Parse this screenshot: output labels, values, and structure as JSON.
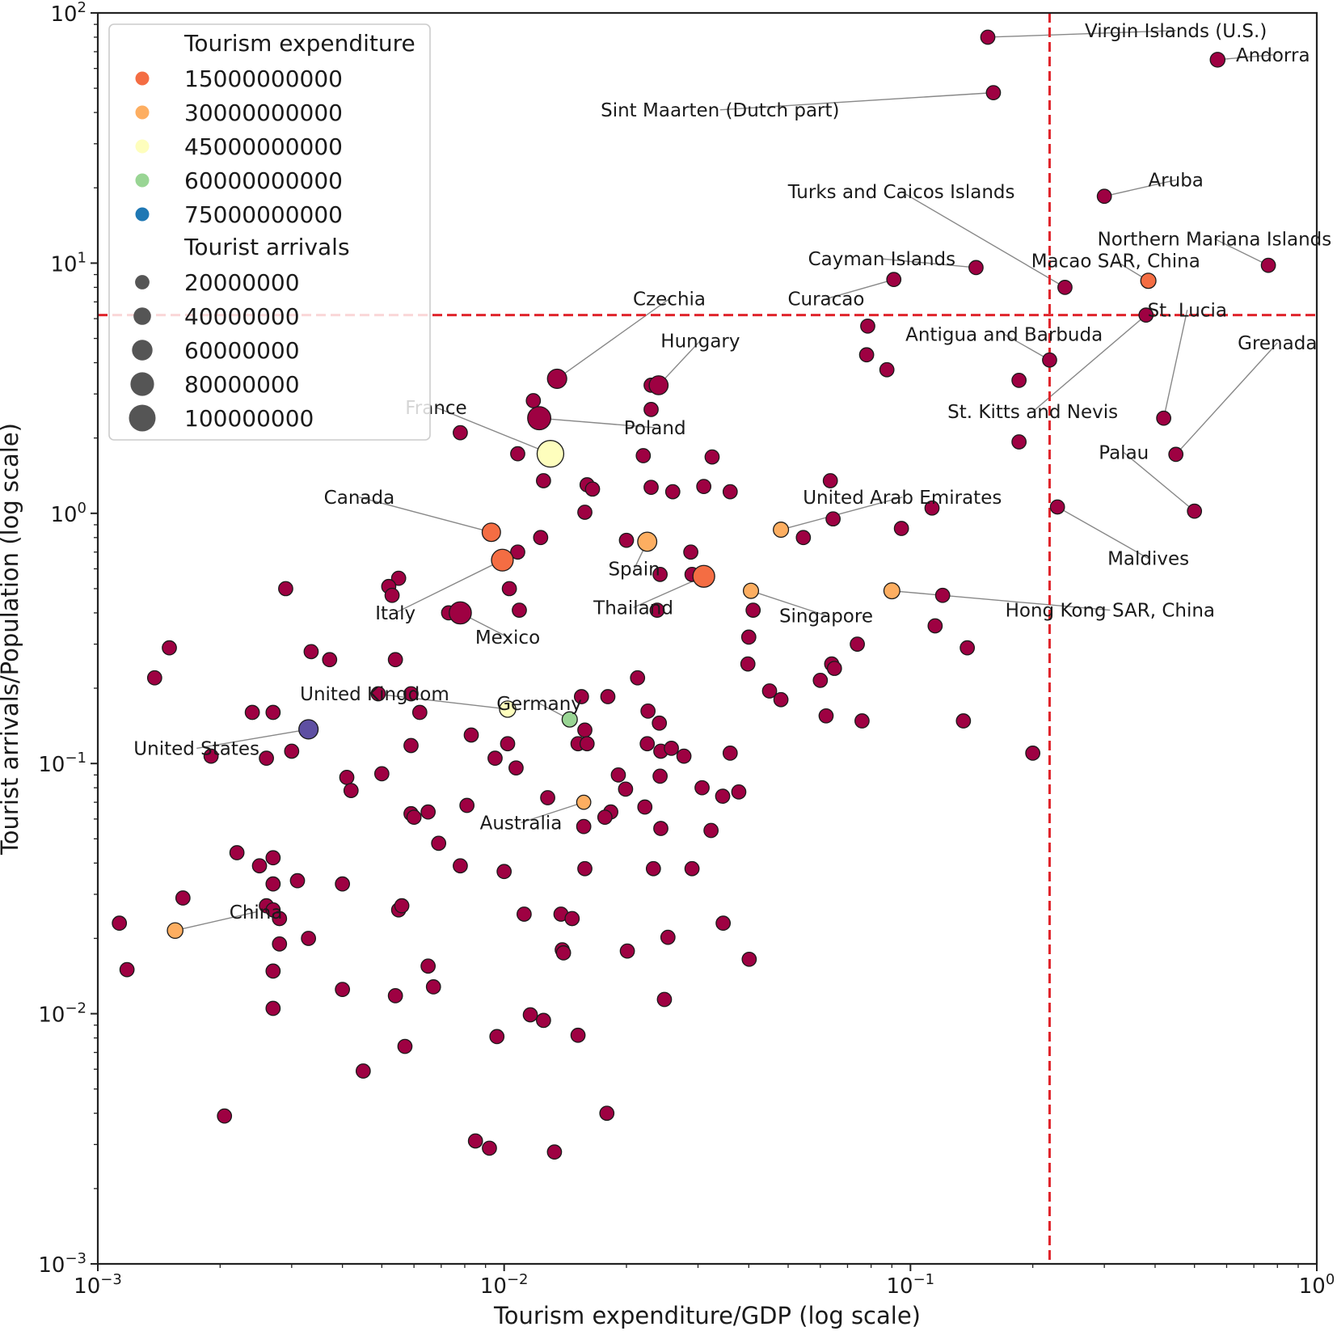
{
  "chart_data": {
    "type": "scatter",
    "title": "",
    "xlabel": "Tourism expenditure/GDP (log scale)",
    "ylabel": "Tourist arrivals/Population (log scale)",
    "xscale": "log",
    "yscale": "log",
    "xlim": [
      0.001,
      1
    ],
    "ylim": [
      0.001,
      100
    ],
    "x_ticks": [
      {
        "value": 0.001,
        "base": "10",
        "exp": "−3"
      },
      {
        "value": 0.01,
        "base": "10",
        "exp": "−2"
      },
      {
        "value": 0.1,
        "base": "10",
        "exp": "−1"
      },
      {
        "value": 1,
        "base": "10",
        "exp": "0"
      }
    ],
    "y_ticks": [
      {
        "value": 0.001,
        "base": "10",
        "exp": "−3"
      },
      {
        "value": 0.01,
        "base": "10",
        "exp": "−2"
      },
      {
        "value": 0.1,
        "base": "10",
        "exp": "−1"
      },
      {
        "value": 1,
        "base": "10",
        "exp": "0"
      },
      {
        "value": 10,
        "base": "10",
        "exp": "1"
      },
      {
        "value": 100,
        "base": "10",
        "exp": "2"
      }
    ],
    "thresholds": {
      "x": 0.22,
      "y": 6.2,
      "style": "red dashed"
    },
    "colors": {
      "c0": "#9e0142",
      "c15": "#f46d43",
      "c30": "#fdae61",
      "c45": "#fefebd",
      "c60": "#99d594",
      "c75": "#1f78b4",
      "cUS": "#5e4fa2",
      "threshold": "#e0242b"
    },
    "legend": {
      "position": "top-left",
      "color_title": "Tourism expenditure",
      "color_items": [
        {
          "label": "15000000000",
          "color": "#f46d43"
        },
        {
          "label": "30000000000",
          "color": "#fdae61"
        },
        {
          "label": "45000000000",
          "color": "#fefebd"
        },
        {
          "label": "60000000000",
          "color": "#99d594"
        },
        {
          "label": "75000000000",
          "color": "#1f78b4"
        }
      ],
      "size_title": "Tourist arrivals",
      "size_items": [
        {
          "label": "20000000",
          "arrivals": 20000000
        },
        {
          "label": "40000000",
          "arrivals": 40000000
        },
        {
          "label": "60000000",
          "arrivals": 60000000
        },
        {
          "label": "80000000",
          "arrivals": 80000000
        },
        {
          "label": "100000000",
          "arrivals": 100000000
        }
      ]
    },
    "labeled_points": [
      {
        "name": "Virgin Islands (U.S.)",
        "x": 0.155,
        "y": 80,
        "arrivals": 1000000,
        "color": "c0",
        "label_x": 0.45,
        "label_y": 85
      },
      {
        "name": "Andorra",
        "x": 0.57,
        "y": 65,
        "arrivals": 2000000,
        "color": "c0",
        "label_x": 0.78,
        "label_y": 68
      },
      {
        "name": "Sint Maarten (Dutch part)",
        "x": 0.16,
        "y": 48,
        "arrivals": 1000000,
        "color": "c0",
        "label_x": 0.034,
        "label_y": 41
      },
      {
        "name": "Turks and Caicos Islands",
        "x": 0.24,
        "y": 8,
        "arrivals": 1000000,
        "color": "c0",
        "label_x": 0.095,
        "label_y": 19.3
      },
      {
        "name": "Aruba",
        "x": 0.3,
        "y": 18.5,
        "arrivals": 1000000,
        "color": "c0",
        "label_x": 0.45,
        "label_y": 21.5
      },
      {
        "name": "Northern Mariana Islands",
        "x": 0.76,
        "y": 9.8,
        "arrivals": 1000000,
        "color": "c0",
        "label_x": 0.56,
        "label_y": 12.5
      },
      {
        "name": "Cayman Islands",
        "x": 0.145,
        "y": 9.6,
        "arrivals": 1000000,
        "color": "c0",
        "label_x": 0.085,
        "label_y": 10.4
      },
      {
        "name": "Macao SAR, China",
        "x": 0.385,
        "y": 8.5,
        "arrivals": 3000000,
        "color": "c15",
        "label_x": 0.32,
        "label_y": 10.2
      },
      {
        "name": "Curacao",
        "x": 0.091,
        "y": 8.6,
        "arrivals": 1000000,
        "color": "c0",
        "label_x": 0.062,
        "label_y": 7.2
      },
      {
        "name": "St. Lucia",
        "x": 0.42,
        "y": 2.4,
        "arrivals": 1000000,
        "color": "c0",
        "label_x": 0.48,
        "label_y": 6.5
      },
      {
        "name": "Grenada",
        "x": 0.45,
        "y": 1.72,
        "arrivals": 1000000,
        "color": "c0",
        "label_x": 0.8,
        "label_y": 4.8
      },
      {
        "name": "Antigua and Barbuda",
        "x": 0.22,
        "y": 4.1,
        "arrivals": 1000000,
        "color": "c0",
        "label_x": 0.17,
        "label_y": 5.2
      },
      {
        "name": "St. Kitts and Nevis",
        "x": 0.38,
        "y": 6.2,
        "arrivals": 1000000,
        "color": "c0",
        "label_x": 0.2,
        "label_y": 2.55
      },
      {
        "name": "Palau",
        "x": 0.5,
        "y": 1.02,
        "arrivals": 1000000,
        "color": "c0",
        "label_x": 0.335,
        "label_y": 1.75
      },
      {
        "name": "Maldives",
        "x": 0.23,
        "y": 1.06,
        "arrivals": 1000000,
        "color": "c0",
        "label_x": 0.385,
        "label_y": 0.66
      },
      {
        "name": "Czechia",
        "x": 0.0135,
        "y": 3.45,
        "arrivals": 20000000,
        "color": "c0",
        "label_x": 0.0255,
        "label_y": 7.2
      },
      {
        "name": "Hungary",
        "x": 0.024,
        "y": 3.25,
        "arrivals": 18000000,
        "color": "c0",
        "label_x": 0.0304,
        "label_y": 4.9
      },
      {
        "name": "Poland",
        "x": 0.0122,
        "y": 2.4,
        "arrivals": 50000000,
        "color": "c0",
        "label_x": 0.0235,
        "label_y": 2.2
      },
      {
        "name": "France",
        "x": 0.013,
        "y": 1.73,
        "arrivals": 89000000,
        "color": "c45",
        "label_x": 0.0068,
        "label_y": 2.65
      },
      {
        "name": "Canada",
        "x": 0.0093,
        "y": 0.84,
        "arrivals": 15000000,
        "color": "c15",
        "label_x": 0.0044,
        "label_y": 1.16
      },
      {
        "name": "Italy",
        "x": 0.0099,
        "y": 0.65,
        "arrivals": 38000000,
        "color": "c15",
        "label_x": 0.0054,
        "label_y": 0.4
      },
      {
        "name": "Spain",
        "x": 0.0225,
        "y": 0.77,
        "arrivals": 19000000,
        "color": "c30",
        "label_x": 0.0209,
        "label_y": 0.6
      },
      {
        "name": "Thailand",
        "x": 0.031,
        "y": 0.56,
        "arrivals": 38000000,
        "color": "c15",
        "label_x": 0.0208,
        "label_y": 0.42
      },
      {
        "name": "Mexico",
        "x": 0.0078,
        "y": 0.4,
        "arrivals": 41000000,
        "color": "c0",
        "label_x": 0.0102,
        "label_y": 0.32
      },
      {
        "name": "United Arab Emirates",
        "x": 0.048,
        "y": 0.86,
        "arrivals": 3000000,
        "color": "c30",
        "label_x": 0.0955,
        "label_y": 1.16
      },
      {
        "name": "Singapore",
        "x": 0.0405,
        "y": 0.49,
        "arrivals": 3000000,
        "color": "c30",
        "label_x": 0.062,
        "label_y": 0.39
      },
      {
        "name": "Hong Kong SAR, China",
        "x": 0.09,
        "y": 0.49,
        "arrivals": 5000000,
        "color": "c30",
        "label_x": 0.31,
        "label_y": 0.41
      },
      {
        "name": "United Kingdom",
        "x": 0.0102,
        "y": 0.165,
        "arrivals": 6000000,
        "color": "c45",
        "label_x": 0.0048,
        "label_y": 0.19
      },
      {
        "name": "Germany",
        "x": 0.0145,
        "y": 0.15,
        "arrivals": 3000000,
        "color": "c60",
        "label_x": 0.0122,
        "label_y": 0.174
      },
      {
        "name": "United States",
        "x": 0.0033,
        "y": 0.137,
        "arrivals": 20000000,
        "color": "cUS",
        "label_x": 0.00175,
        "label_y": 0.115
      },
      {
        "name": "Australia",
        "x": 0.0157,
        "y": 0.07,
        "arrivals": 1000000,
        "color": "c30",
        "label_x": 0.011,
        "label_y": 0.058
      },
      {
        "name": "China",
        "x": 0.00155,
        "y": 0.0215,
        "arrivals": 4000000,
        "color": "c30",
        "label_x": 0.00245,
        "label_y": 0.0255
      }
    ],
    "points": [
      [
        0.0108,
        1.73
      ],
      [
        0.0118,
        2.82
      ],
      [
        0.0078,
        2.1
      ],
      [
        0.0125,
        1.35
      ],
      [
        0.016,
        1.3
      ],
      [
        0.0165,
        1.25
      ],
      [
        0.0158,
        1.01
      ],
      [
        0.022,
        1.7
      ],
      [
        0.023,
        2.6
      ],
      [
        0.023,
        3.25
      ],
      [
        0.023,
        1.27
      ],
      [
        0.026,
        1.22
      ],
      [
        0.031,
        1.28
      ],
      [
        0.036,
        1.22
      ],
      [
        0.0325,
        1.68
      ],
      [
        0.0635,
        1.35
      ],
      [
        0.0645,
        0.95
      ],
      [
        0.0545,
        0.8
      ],
      [
        0.095,
        0.87
      ],
      [
        0.113,
        1.05
      ],
      [
        0.0785,
        5.6
      ],
      [
        0.078,
        4.3
      ],
      [
        0.0875,
        3.75
      ],
      [
        0.185,
        3.4
      ],
      [
        0.185,
        1.93
      ],
      [
        0.0123,
        0.8
      ],
      [
        0.0108,
        0.7
      ],
      [
        0.02,
        0.78
      ],
      [
        0.0242,
        0.57
      ],
      [
        0.0288,
        0.7
      ],
      [
        0.029,
        0.57
      ],
      [
        0.0103,
        0.5
      ],
      [
        0.0055,
        0.55
      ],
      [
        0.0052,
        0.51
      ],
      [
        0.0053,
        0.47
      ],
      [
        0.0029,
        0.5
      ],
      [
        0.0073,
        0.4
      ],
      [
        0.0109,
        0.41
      ],
      [
        0.0238,
        0.41
      ],
      [
        0.041,
        0.41
      ],
      [
        0.12,
        0.47
      ],
      [
        0.115,
        0.355
      ],
      [
        0.138,
        0.29
      ],
      [
        0.074,
        0.3
      ],
      [
        0.064,
        0.25
      ],
      [
        0.065,
        0.24
      ],
      [
        0.04,
        0.32
      ],
      [
        0.0398,
        0.25
      ],
      [
        0.06,
        0.215
      ],
      [
        0.045,
        0.195
      ],
      [
        0.048,
        0.18
      ],
      [
        0.062,
        0.155
      ],
      [
        0.076,
        0.148
      ],
      [
        0.135,
        0.148
      ],
      [
        0.2,
        0.11
      ],
      [
        0.0015,
        0.29
      ],
      [
        0.00138,
        0.22
      ],
      [
        0.00335,
        0.28
      ],
      [
        0.00372,
        0.26
      ],
      [
        0.0054,
        0.26
      ],
      [
        0.0059,
        0.19
      ],
      [
        0.0049,
        0.19
      ],
      [
        0.0024,
        0.16
      ],
      [
        0.0027,
        0.16
      ],
      [
        0.0062,
        0.16
      ],
      [
        0.0083,
        0.13
      ],
      [
        0.0102,
        0.12
      ],
      [
        0.0095,
        0.105
      ],
      [
        0.0107,
        0.096
      ],
      [
        0.0155,
        0.185
      ],
      [
        0.018,
        0.185
      ],
      [
        0.0213,
        0.22
      ],
      [
        0.0226,
        0.162
      ],
      [
        0.0241,
        0.145
      ],
      [
        0.0225,
        0.12
      ],
      [
        0.0243,
        0.112
      ],
      [
        0.0258,
        0.115
      ],
      [
        0.0277,
        0.107
      ],
      [
        0.0158,
        0.136
      ],
      [
        0.0152,
        0.12
      ],
      [
        0.016,
        0.12
      ],
      [
        0.036,
        0.11
      ],
      [
        0.0019,
        0.107
      ],
      [
        0.0026,
        0.105
      ],
      [
        0.003,
        0.112
      ],
      [
        0.0041,
        0.088
      ],
      [
        0.0042,
        0.078
      ],
      [
        0.005,
        0.091
      ],
      [
        0.0059,
        0.118
      ],
      [
        0.0191,
        0.09
      ],
      [
        0.0242,
        0.089
      ],
      [
        0.0199,
        0.079
      ],
      [
        0.0307,
        0.08
      ],
      [
        0.0345,
        0.074
      ],
      [
        0.0378,
        0.077
      ],
      [
        0.0128,
        0.073
      ],
      [
        0.0059,
        0.063
      ],
      [
        0.006,
        0.061
      ],
      [
        0.0065,
        0.064
      ],
      [
        0.0081,
        0.068
      ],
      [
        0.0183,
        0.064
      ],
      [
        0.0177,
        0.061
      ],
      [
        0.0222,
        0.067
      ],
      [
        0.0157,
        0.056
      ],
      [
        0.0243,
        0.055
      ],
      [
        0.0323,
        0.054
      ],
      [
        0.0069,
        0.048
      ],
      [
        0.0022,
        0.044
      ],
      [
        0.0025,
        0.039
      ],
      [
        0.0027,
        0.042
      ],
      [
        0.0078,
        0.039
      ],
      [
        0.01,
        0.037
      ],
      [
        0.0158,
        0.038
      ],
      [
        0.0233,
        0.038
      ],
      [
        0.029,
        0.038
      ],
      [
        0.0027,
        0.033
      ],
      [
        0.0031,
        0.034
      ],
      [
        0.004,
        0.033
      ],
      [
        0.00162,
        0.029
      ],
      [
        0.0026,
        0.027
      ],
      [
        0.0027,
        0.026
      ],
      [
        0.0028,
        0.024
      ],
      [
        0.0055,
        0.026
      ],
      [
        0.0056,
        0.027
      ],
      [
        0.0112,
        0.025
      ],
      [
        0.0138,
        0.025
      ],
      [
        0.0147,
        0.024
      ],
      [
        0.0346,
        0.023
      ],
      [
        0.00113,
        0.023
      ],
      [
        0.00118,
        0.015
      ],
      [
        0.0028,
        0.019
      ],
      [
        0.0033,
        0.02
      ],
      [
        0.0027,
        0.0148
      ],
      [
        0.0139,
        0.018
      ],
      [
        0.014,
        0.0175
      ],
      [
        0.0201,
        0.0178
      ],
      [
        0.0253,
        0.0202
      ],
      [
        0.0401,
        0.0165
      ],
      [
        0.0065,
        0.0155
      ],
      [
        0.0067,
        0.0128
      ],
      [
        0.0054,
        0.0118
      ],
      [
        0.0248,
        0.0114
      ],
      [
        0.0116,
        0.0099
      ],
      [
        0.0125,
        0.0094
      ],
      [
        0.0152,
        0.0082
      ],
      [
        0.0096,
        0.0081
      ],
      [
        0.0057,
        0.0074
      ],
      [
        0.0045,
        0.0059
      ],
      [
        0.00205,
        0.0039
      ],
      [
        0.0179,
        0.004
      ],
      [
        0.0085,
        0.0031
      ],
      [
        0.0092,
        0.0029
      ],
      [
        0.0133,
        0.0028
      ],
      [
        0.004,
        0.0125
      ],
      [
        0.0027,
        0.0105
      ]
    ]
  }
}
